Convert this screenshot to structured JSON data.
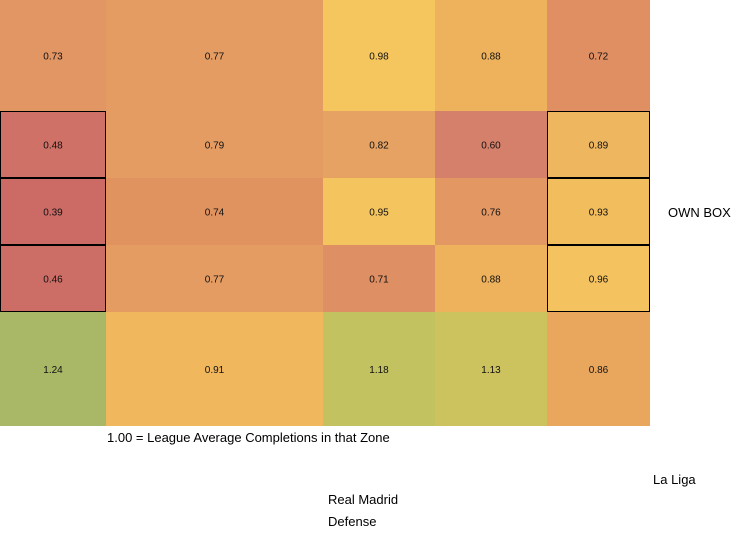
{
  "chart_data": {
    "type": "heatmap",
    "columns": 5,
    "rows": 5,
    "values": [
      [
        "0.73",
        "0.77",
        "0.98",
        "0.88",
        "0.72"
      ],
      [
        "0.48",
        "0.79",
        "0.82",
        "0.60",
        "0.89"
      ],
      [
        "0.39",
        "0.74",
        "0.95",
        "0.76",
        "0.93"
      ],
      [
        "0.46",
        "0.77",
        "0.71",
        "0.88",
        "0.96"
      ],
      [
        "1.24",
        "0.91",
        "1.18",
        "1.13",
        "0.86"
      ]
    ],
    "highlighted_boxes": [
      {
        "col": 0,
        "rows": [
          1,
          2,
          3
        ]
      },
      {
        "col": 4,
        "rows": [
          1,
          2,
          3
        ]
      }
    ],
    "side_label": "OWN BOX",
    "legend_note": "1.00 = League Average Completions in that Zone",
    "league": "La Liga",
    "team": "Real Madrid",
    "phase": "Defense"
  },
  "cell_colors": {
    "0.39": "#cc6b65",
    "0.46": "#cd6e66",
    "0.48": "#cf7166",
    "0.60": "#d5806a",
    "0.71": "#de8f64",
    "0.72": "#e08f63",
    "0.73": "#e29663",
    "0.74": "#e0935f",
    "0.76": "#e39762",
    "0.77": "#e49c62",
    "0.79": "#e49c62",
    "0.82": "#e5a263",
    "0.86": "#e9a75e",
    "0.88": "#eeb25c",
    "0.89": "#eeb65e",
    "0.91": "#f0b75c",
    "0.93": "#f2bd5c",
    "0.95": "#f4c55e",
    "0.96": "#f4c25f",
    "0.98": "#f5c55e",
    "1.13": "#ccc25e",
    "1.18": "#c2c360",
    "1.24": "#a8b866"
  }
}
